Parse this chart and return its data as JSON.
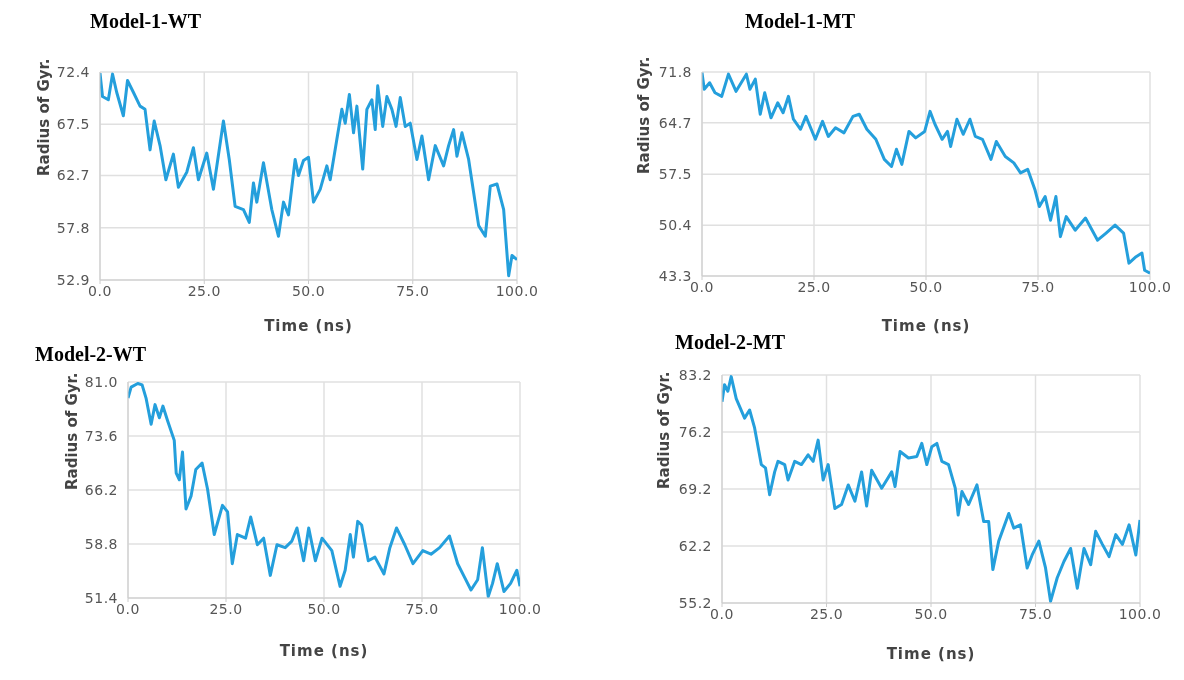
{
  "chart_data": [
    {
      "type": "line",
      "title": "Model-1-WT",
      "xlabel": "Time (ns)",
      "ylabel": "Radius of Gyr.",
      "grid": true,
      "xlim": [
        0,
        100
      ],
      "xticks": [
        {
          "value": 0,
          "label": "0.0"
        },
        {
          "value": 25,
          "label": "25.0"
        },
        {
          "value": 50,
          "label": "50.0"
        },
        {
          "value": 75,
          "label": "75.0"
        },
        {
          "value": 100,
          "label": "100.0"
        }
      ],
      "ylim": [
        52.9,
        72.4
      ],
      "yticks": [
        52.9,
        57.8,
        62.7,
        67.5,
        72.4
      ],
      "x": [
        0,
        0.6,
        2,
        3,
        4,
        5.6,
        6.6,
        8,
        9.6,
        10.8,
        12,
        13,
        14.4,
        15.8,
        17.6,
        18.8,
        20.8,
        22.4,
        23.6,
        25.6,
        27.2,
        29.6,
        31,
        32.4,
        34.4,
        35.8,
        36.8,
        37.6,
        39.2,
        41.2,
        42.8,
        44,
        45.2,
        46.8,
        47.6,
        48.8,
        50,
        51.2,
        52.8,
        54.4,
        55.2,
        56.8,
        58,
        58.8,
        59.8,
        60.8,
        61.6,
        63,
        64,
        65.2,
        66,
        66.6,
        67.8,
        68.8,
        70,
        71,
        72,
        73.2,
        74.4,
        76,
        77.2,
        78.8,
        80.4,
        82.4,
        83.6,
        84.8,
        85.6,
        86.8,
        88.4,
        89.6,
        90.8,
        92.4,
        93.6,
        95.2,
        96.8,
        98,
        98.8,
        100
      ],
      "series": [
        {
          "color": "#249fdc",
          "values": [
            72.3,
            70.1,
            69.8,
            72.2,
            70.5,
            68.3,
            71.6,
            70.5,
            69.2,
            68.9,
            65.1,
            67.8,
            65.5,
            62.3,
            64.7,
            61.6,
            63,
            65.3,
            62.3,
            64.8,
            61.4,
            67.8,
            64.2,
            59.8,
            59.5,
            58.3,
            62,
            60.2,
            63.9,
            59.5,
            57,
            60.2,
            59,
            64.2,
            62.7,
            64.1,
            64.4,
            60.2,
            61.4,
            63.6,
            62.3,
            66.1,
            68.9,
            67.6,
            70.3,
            66.7,
            69.2,
            63.3,
            68.9,
            69.8,
            67,
            71.1,
            67.3,
            70.1,
            68.9,
            67.3,
            70,
            67.3,
            67.6,
            64.2,
            66.4,
            62.3,
            65.5,
            63.6,
            65.5,
            67,
            64.5,
            66.7,
            64.2,
            61.1,
            58,
            57,
            61.7,
            61.9,
            59.5,
            53.3,
            55.2,
            54.8
          ]
        }
      ]
    },
    {
      "type": "line",
      "title": "Model-1-MT",
      "xlabel": "Time (ns)",
      "ylabel": "Radius of Gyr.",
      "grid": true,
      "xlim": [
        0,
        100
      ],
      "xticks": [
        {
          "value": 0,
          "label": "0.0"
        },
        {
          "value": 25,
          "label": "25.0"
        },
        {
          "value": 50,
          "label": "50.0"
        },
        {
          "value": 75,
          "label": "75.0"
        },
        {
          "value": 100,
          "label": "100.0"
        }
      ],
      "ylim": [
        43.3,
        71.8
      ],
      "yticks": [
        43.3,
        50.4,
        57.5,
        64.7,
        71.8
      ],
      "x": [
        0,
        0.5,
        1.7,
        2.9,
        4.4,
        5.9,
        7.6,
        9.9,
        10.7,
        11.9,
        13,
        14,
        15.4,
        16.9,
        18.1,
        19.3,
        20.4,
        22,
        23.2,
        25.3,
        26.9,
        28.2,
        29.8,
        31.7,
        33.7,
        35.1,
        36.8,
        38.8,
        40.7,
        42.3,
        43.4,
        44.6,
        46.2,
        47.7,
        49.7,
        50.9,
        52,
        53.6,
        54.8,
        55.5,
        56.9,
        58.3,
        59.8,
        61,
        62.6,
        64.5,
        65.7,
        67.7,
        69.6,
        71.1,
        72.7,
        74.3,
        75.3,
        76.6,
        77.8,
        79,
        80,
        81.3,
        83.3,
        85.6,
        88.3,
        90.2,
        92.2,
        94.1,
        95.3,
        96.9,
        98.2,
        98.8,
        100
      ],
      "series": [
        {
          "color": "#249fdc",
          "values": [
            71.7,
            69.4,
            70.3,
            68.9,
            68.4,
            71.5,
            69.1,
            71.5,
            69.4,
            70.8,
            65.9,
            68.9,
            65.4,
            67.5,
            66.1,
            68.4,
            65.2,
            63.8,
            65.6,
            62.4,
            64.9,
            62.8,
            64,
            63.3,
            65.6,
            65.9,
            63.8,
            62.4,
            59.6,
            58.6,
            61,
            58.9,
            63.5,
            62.6,
            63.5,
            66.3,
            64.5,
            62.4,
            63.5,
            61.4,
            65.2,
            63.1,
            65.2,
            62.8,
            62.4,
            59.6,
            62.1,
            60,
            59.1,
            57.7,
            58.2,
            55.4,
            53,
            54.4,
            51.1,
            54.4,
            48.8,
            51.6,
            49.7,
            51.4,
            48.3,
            49.3,
            50.4,
            49.3,
            45.1,
            46,
            46.5,
            44.1,
            43.7
          ]
        }
      ]
    },
    {
      "type": "line",
      "title": "Model-2-WT",
      "xlabel": "Time (ns)",
      "ylabel": "Radius of Gyr.",
      "grid": true,
      "xlim": [
        0,
        100
      ],
      "xticks": [
        {
          "value": 0,
          "label": "0.0"
        },
        {
          "value": 25,
          "label": "25.0"
        },
        {
          "value": 50,
          "label": "50.0"
        },
        {
          "value": 75,
          "label": "75.0"
        },
        {
          "value": 100,
          "label": "100.0"
        }
      ],
      "ylim": [
        51.4,
        81
      ],
      "yticks": [
        51.4,
        58.8,
        66.2,
        73.6,
        {
          "value": 81,
          "label": "81.0"
        }
      ],
      "x": [
        0,
        0.8,
        2.5,
        3.6,
        4.6,
        5.9,
        6.9,
        8,
        8.9,
        10.1,
        11.8,
        12.3,
        13.1,
        13.9,
        14.8,
        16.1,
        17.3,
        18.9,
        20.3,
        22,
        24.1,
        25.4,
        26.6,
        27.9,
        30,
        31.3,
        33,
        34.6,
        36.3,
        38,
        40.1,
        41.8,
        43.1,
        44.8,
        46.1,
        47.8,
        49.5,
        52,
        54.1,
        55.4,
        56.7,
        57.5,
        58.6,
        59.6,
        61.3,
        63,
        65.3,
        66.8,
        68.5,
        70.6,
        72.7,
        75.2,
        77.3,
        79.5,
        82,
        84.1,
        85.8,
        87.5,
        89.2,
        90.4,
        91.9,
        93,
        94.2,
        95.9,
        97.6,
        99.2,
        100
      ],
      "series": [
        {
          "color": "#249fdc",
          "values": [
            78.8,
            80.3,
            80.8,
            80.6,
            78.8,
            75.2,
            77.9,
            76.1,
            77.7,
            75.7,
            73,
            68.5,
            67.6,
            71.4,
            63.6,
            65.4,
            69,
            69.9,
            66.3,
            60.1,
            64.1,
            63.2,
            56.1,
            60.1,
            59.6,
            62.5,
            58.7,
            59.6,
            54.5,
            58.7,
            58.3,
            59.2,
            61,
            56.5,
            61,
            56.5,
            59.6,
            57.9,
            53,
            55.2,
            60.1,
            57,
            61.9,
            61.4,
            56.5,
            57,
            54.7,
            58.3,
            61,
            58.7,
            56.1,
            57.9,
            57.4,
            58.3,
            59.9,
            56.1,
            54.3,
            52.5,
            53.9,
            58.3,
            51.6,
            53.4,
            56.1,
            52.3,
            53.4,
            55.2,
            53
          ]
        }
      ]
    },
    {
      "type": "line",
      "title": "Model-2-MT",
      "xlabel": "Time (ns)",
      "ylabel": "Radius of Gyr.",
      "grid": true,
      "xlim": [
        0,
        100
      ],
      "xticks": [
        {
          "value": 0,
          "label": "0.0"
        },
        {
          "value": 25,
          "label": "25.0"
        },
        {
          "value": 50,
          "label": "50.0"
        },
        {
          "value": 75,
          "label": "75.0"
        },
        {
          "value": 100,
          "label": "100.0"
        }
      ],
      "ylim": [
        55.2,
        83.2
      ],
      "yticks": [
        55.2,
        62.2,
        69.2,
        76.2,
        83.2
      ],
      "x": [
        0,
        0.6,
        1.4,
        2.2,
        3.4,
        5.4,
        6.6,
        7.8,
        9.4,
        10.4,
        11.4,
        12.6,
        13.4,
        15,
        15.8,
        17.4,
        19,
        20.6,
        21.8,
        23,
        24.2,
        25.4,
        27,
        28.6,
        30.2,
        31.8,
        33.4,
        34.6,
        35.8,
        38.2,
        40.6,
        41.4,
        42.6,
        44.6,
        46.6,
        47.8,
        49,
        50.2,
        51.4,
        52.6,
        54.2,
        55.8,
        56.5,
        57.4,
        59,
        61,
        62.6,
        63.8,
        64.8,
        66.2,
        68.6,
        69.8,
        71.4,
        73,
        74.2,
        75.8,
        77.4,
        78.6,
        80.2,
        81.8,
        83.4,
        85,
        86.6,
        88.2,
        89.4,
        91,
        92.6,
        94.2,
        95.8,
        97.4,
        99,
        100
      ],
      "series": [
        {
          "color": "#249fdc",
          "values": [
            79.9,
            82,
            81.2,
            83,
            80.3,
            77.9,
            78.9,
            76.7,
            72.2,
            71.8,
            68.5,
            71.3,
            72.6,
            72.2,
            70.3,
            72.6,
            72.2,
            73.4,
            72.6,
            75.2,
            70.3,
            72.2,
            66.8,
            67.3,
            69.7,
            67.7,
            71.3,
            67.1,
            71.5,
            69.3,
            71.3,
            69.5,
            73.8,
            73,
            73.2,
            74.8,
            72.2,
            74.4,
            74.8,
            72.6,
            72.2,
            69.3,
            66,
            68.9,
            67.3,
            69.7,
            65.2,
            65.2,
            59.3,
            62.8,
            66.2,
            64.4,
            64.8,
            59.5,
            61.1,
            62.8,
            59.5,
            55.4,
            58.3,
            60.3,
            61.9,
            57,
            61.9,
            59.9,
            64,
            62.4,
            60.9,
            63.6,
            62.4,
            64.8,
            61.1,
            65.4
          ]
        }
      ]
    }
  ]
}
